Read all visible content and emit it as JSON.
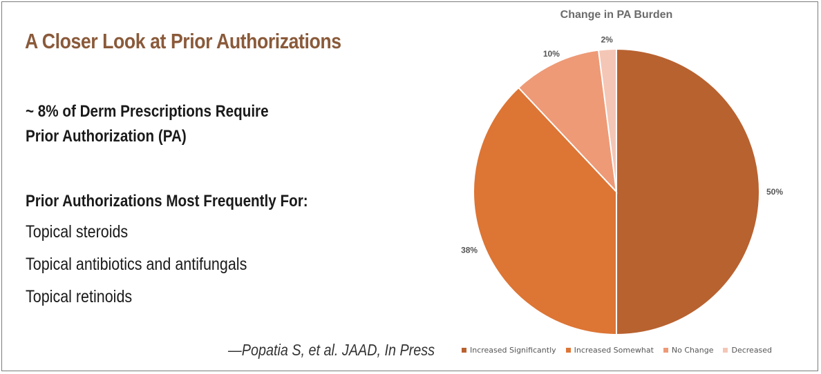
{
  "slide": {
    "title": "A Closer Look at Prior Authorizations",
    "stat_line1": "~ 8% of Derm Prescriptions Require",
    "stat_line2": "Prior Authorization (PA)",
    "list_heading": "Prior Authorizations Most Frequently For:",
    "list_items": [
      "Topical steroids",
      "Topical antibiotics and antifungals",
      "Topical retinoids"
    ],
    "citation": "—Popatia S, et al. JAAD, In Press"
  },
  "chart_data": {
    "type": "pie",
    "title": "Change in PA Burden",
    "categories": [
      "Increased Significantly",
      "Increased Somewhat",
      "No Change",
      "Decreased"
    ],
    "values": [
      50,
      38,
      10,
      2
    ],
    "value_labels": [
      "50%",
      "38%",
      "10%",
      "2%"
    ],
    "colors": [
      "#b86230",
      "#dd7535",
      "#ee9a76",
      "#f4c6b6"
    ],
    "legend_position": "bottom"
  }
}
